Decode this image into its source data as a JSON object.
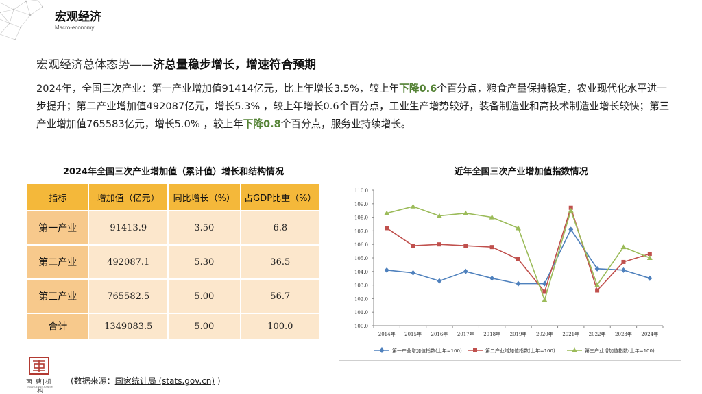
{
  "header": {
    "title": "宏观经济",
    "subtitle": "Macro-economy"
  },
  "section": {
    "title_prefix": "宏观经济总体态势——",
    "title_emphasis": "济总量稳步增长，增速符合预期"
  },
  "summary": {
    "part1": "2024年，全国三次产业：第一产业增加值91414亿元，比上年增长3.5%，较上年",
    "down1": "下降0.6",
    "part2": "个百分点，粮食产量保持稳定，农业现代化水平进一步提升；第二产业增加值492087亿元，增长5.3% ，较上年增长0.6个百分点，工业生产增势较好，装备制造业和高技术制造业增长较快；第三产业增加值765583亿元，增长5.0% ，较上年",
    "down2": "下降0.8",
    "part3": "个百分点，服务业持续增长。",
    "down_color": "#548235"
  },
  "table": {
    "title": "2024年全国三次产业增加值（累计值）增长和结构情况",
    "headers": [
      "指标",
      "增加值（亿元）",
      "同比增长（%）",
      "占GDP比重（%）"
    ],
    "rows": [
      [
        "第一产业",
        "91413.9",
        "3.50",
        "6.8"
      ],
      [
        "第二产业",
        "492087.1",
        "5.30",
        "36.5"
      ],
      [
        "第三产业",
        "765582.5",
        "5.00",
        "56.7"
      ],
      [
        "合计",
        "1349083.5",
        "5.00",
        "100.0"
      ]
    ]
  },
  "chart_data": {
    "type": "line",
    "title": "近年全国三次产业增加值指数情况",
    "categories": [
      "2014年",
      "2015年",
      "2016年",
      "2017年",
      "2018年",
      "2019年",
      "2020年",
      "2021年",
      "2022年",
      "2023年",
      "2024年"
    ],
    "ylim": [
      100.0,
      110.0
    ],
    "yticks": [
      "100.0",
      "101.0",
      "102.0",
      "103.0",
      "104.0",
      "105.0",
      "106.0",
      "107.0",
      "108.0",
      "109.0",
      "110.0"
    ],
    "grid": false,
    "legend_position": "bottom",
    "series": [
      {
        "name": "第一产业增加值指数(上年=100)",
        "color": "#4F81BD",
        "marker": "diamond",
        "values": [
          104.1,
          103.9,
          103.3,
          104.0,
          103.5,
          103.1,
          103.1,
          107.1,
          104.2,
          104.1,
          103.5
        ]
      },
      {
        "name": "第二产业增加值指数(上年=100)",
        "color": "#C0504D",
        "marker": "square",
        "values": [
          107.2,
          105.9,
          106.0,
          105.9,
          105.8,
          104.9,
          102.5,
          108.7,
          102.6,
          104.7,
          105.3
        ]
      },
      {
        "name": "第三产业增加值指数(上年=100)",
        "color": "#9BBB59",
        "marker": "triangle",
        "values": [
          108.3,
          108.8,
          108.1,
          108.3,
          108.0,
          107.2,
          101.9,
          108.5,
          103.0,
          105.8,
          105.0
        ]
      }
    ]
  },
  "logo": {
    "text": "南|曹|机|构",
    "sub": "NANYUE MECHANISM"
  },
  "source": {
    "prefix": "(数据来源：",
    "link": "国家统计局 (stats.gov.cn)",
    "suffix": " )"
  }
}
